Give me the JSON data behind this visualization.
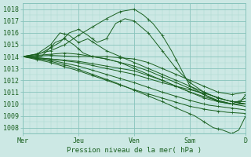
{
  "title": "Pression niveau de la mer( hPa )",
  "ylabel_values": [
    1008,
    1009,
    1010,
    1011,
    1012,
    1013,
    1014,
    1015,
    1016,
    1017,
    1018
  ],
  "xtick_labels": [
    "Mer",
    "Jeu",
    "Ven",
    "Sam",
    "D"
  ],
  "ylim": [
    1007.5,
    1018.5
  ],
  "xlim": [
    0,
    96
  ],
  "bg_color": "#cce8e4",
  "line_color": "#1a6020",
  "grid_major_color": "#88c4bc",
  "grid_minor_color": "#aad8d0",
  "xtick_positions": [
    0,
    24,
    48,
    72,
    96
  ],
  "line_width": 0.7
}
